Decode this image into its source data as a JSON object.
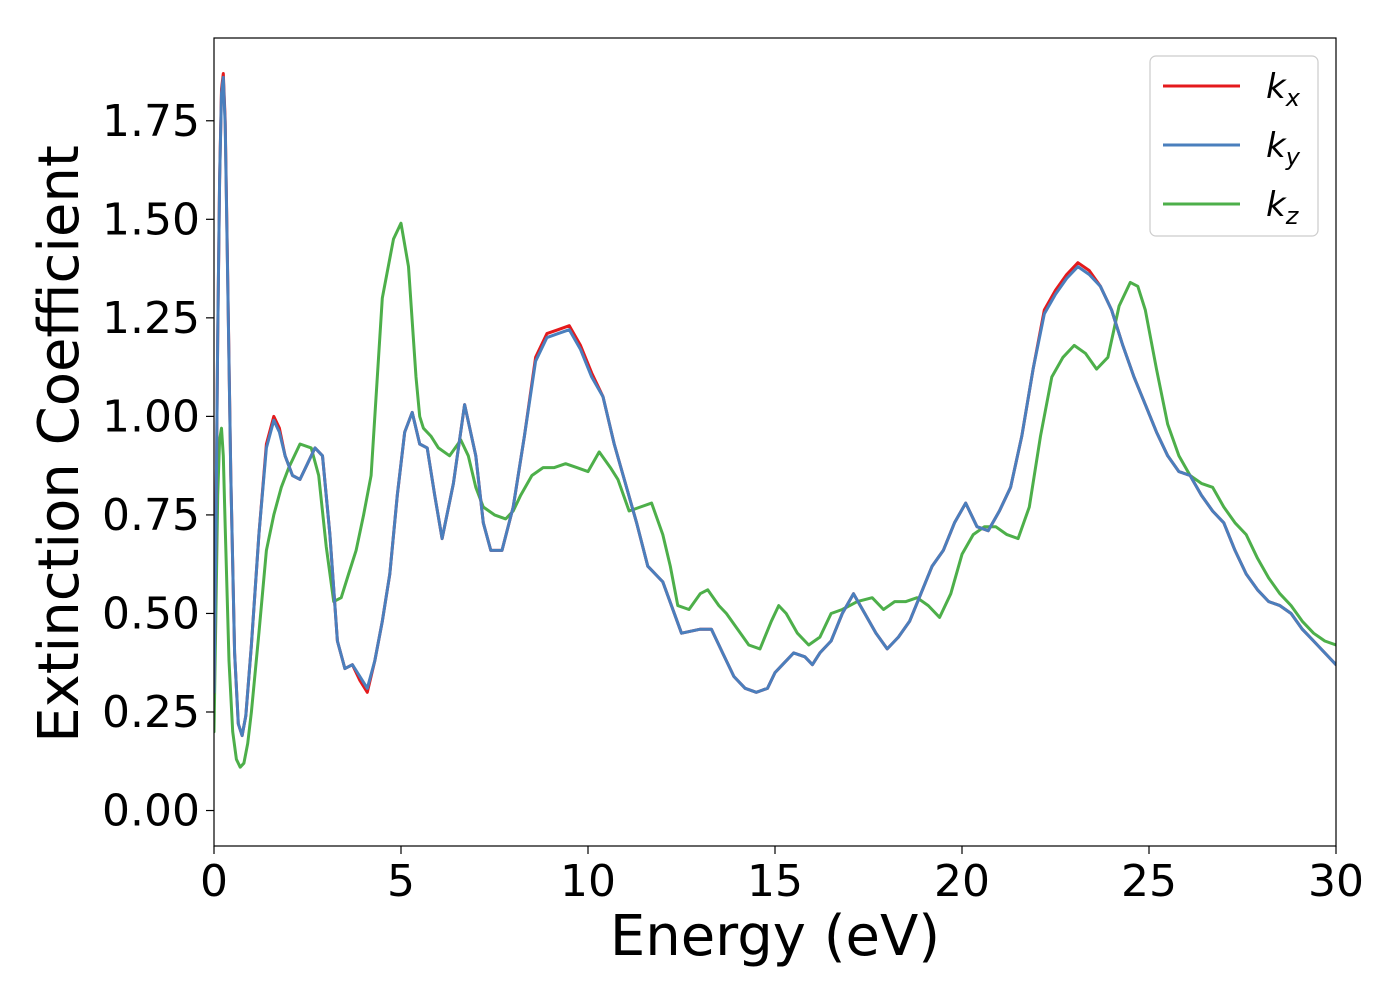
{
  "chart_data": {
    "type": "line",
    "title": "",
    "xlabel": "Energy (eV)",
    "ylabel": "Extinction Coefficient",
    "xlim": [
      0,
      30
    ],
    "ylim": [
      -0.09,
      1.96
    ],
    "xticks": [
      0,
      5,
      10,
      15,
      20,
      25,
      30
    ],
    "xtick_labels": [
      "0",
      "5",
      "10",
      "15",
      "20",
      "25",
      "30"
    ],
    "yticks": [
      0.0,
      0.25,
      0.5,
      0.75,
      1.0,
      1.25,
      1.5,
      1.75
    ],
    "ytick_labels": [
      "0.00",
      "0.25",
      "0.50",
      "0.75",
      "1.00",
      "1.25",
      "1.50",
      "1.75"
    ],
    "grid": false,
    "legend_position": "top-right",
    "series": [
      {
        "name": "k_x",
        "base": "k",
        "sub": "x",
        "color": "#e41a1c",
        "x": [
          0,
          0.05,
          0.1,
          0.15,
          0.2,
          0.25,
          0.3,
          0.35,
          0.45,
          0.55,
          0.65,
          0.75,
          0.85,
          1.0,
          1.2,
          1.4,
          1.6,
          1.75,
          1.9,
          2.1,
          2.3,
          2.5,
          2.7,
          2.9,
          3.1,
          3.3,
          3.5,
          3.7,
          3.9,
          4.1,
          4.3,
          4.5,
          4.7,
          4.9,
          5.1,
          5.3,
          5.5,
          5.7,
          5.9,
          6.1,
          6.4,
          6.7,
          7.0,
          7.2,
          7.4,
          7.7,
          8.0,
          8.3,
          8.6,
          8.9,
          9.2,
          9.5,
          9.8,
          10.1,
          10.4,
          10.7,
          11.0,
          11.3,
          11.6,
          12.0,
          12.5,
          13.0,
          13.3,
          13.6,
          13.9,
          14.2,
          14.5,
          14.8,
          15.0,
          15.2,
          15.5,
          15.8,
          16.0,
          16.2,
          16.5,
          16.8,
          17.1,
          17.4,
          17.7,
          18.0,
          18.3,
          18.6,
          18.9,
          19.2,
          19.5,
          19.8,
          20.1,
          20.4,
          20.7,
          21.0,
          21.3,
          21.6,
          21.9,
          22.2,
          22.5,
          22.8,
          23.1,
          23.4,
          23.7,
          24.0,
          24.3,
          24.6,
          24.9,
          25.2,
          25.5,
          25.8,
          26.1,
          26.4,
          26.7,
          27.0,
          27.3,
          27.6,
          27.9,
          28.2,
          28.5,
          28.8,
          29.1,
          29.4,
          29.7,
          30.0
        ],
        "y": [
          0.3,
          0.7,
          1.2,
          1.6,
          1.83,
          1.87,
          1.75,
          1.45,
          0.85,
          0.4,
          0.22,
          0.19,
          0.24,
          0.42,
          0.7,
          0.93,
          1.0,
          0.97,
          0.9,
          0.85,
          0.84,
          0.88,
          0.92,
          0.9,
          0.7,
          0.43,
          0.36,
          0.37,
          0.33,
          0.3,
          0.38,
          0.48,
          0.6,
          0.8,
          0.96,
          1.01,
          0.93,
          0.92,
          0.8,
          0.69,
          0.83,
          1.03,
          0.9,
          0.73,
          0.66,
          0.66,
          0.77,
          0.95,
          1.15,
          1.21,
          1.22,
          1.23,
          1.18,
          1.11,
          1.05,
          0.93,
          0.83,
          0.73,
          0.62,
          0.58,
          0.45,
          0.46,
          0.46,
          0.4,
          0.34,
          0.31,
          0.3,
          0.31,
          0.35,
          0.37,
          0.4,
          0.39,
          0.37,
          0.4,
          0.43,
          0.5,
          0.55,
          0.5,
          0.45,
          0.41,
          0.44,
          0.48,
          0.55,
          0.62,
          0.66,
          0.73,
          0.78,
          0.72,
          0.71,
          0.76,
          0.82,
          0.95,
          1.12,
          1.27,
          1.32,
          1.36,
          1.39,
          1.37,
          1.33,
          1.27,
          1.18,
          1.1,
          1.03,
          0.96,
          0.9,
          0.86,
          0.85,
          0.8,
          0.76,
          0.73,
          0.66,
          0.6,
          0.56,
          0.53,
          0.52,
          0.5,
          0.46,
          0.43,
          0.4,
          0.37
        ]
      },
      {
        "name": "k_y",
        "base": "k",
        "sub": "y",
        "color": "#4a7fbd",
        "x": [
          0,
          0.05,
          0.1,
          0.15,
          0.2,
          0.25,
          0.3,
          0.35,
          0.45,
          0.55,
          0.65,
          0.75,
          0.85,
          1.0,
          1.2,
          1.4,
          1.6,
          1.75,
          1.9,
          2.1,
          2.3,
          2.5,
          2.7,
          2.9,
          3.1,
          3.3,
          3.5,
          3.7,
          3.9,
          4.1,
          4.3,
          4.5,
          4.7,
          4.9,
          5.1,
          5.3,
          5.5,
          5.7,
          5.9,
          6.1,
          6.4,
          6.7,
          7.0,
          7.2,
          7.4,
          7.7,
          8.0,
          8.3,
          8.6,
          8.9,
          9.2,
          9.5,
          9.8,
          10.1,
          10.4,
          10.7,
          11.0,
          11.3,
          11.6,
          12.0,
          12.5,
          13.0,
          13.3,
          13.6,
          13.9,
          14.2,
          14.5,
          14.8,
          15.0,
          15.2,
          15.5,
          15.8,
          16.0,
          16.2,
          16.5,
          16.8,
          17.1,
          17.4,
          17.7,
          18.0,
          18.3,
          18.6,
          18.9,
          19.2,
          19.5,
          19.8,
          20.1,
          20.4,
          20.7,
          21.0,
          21.3,
          21.6,
          21.9,
          22.2,
          22.5,
          22.8,
          23.1,
          23.4,
          23.7,
          24.0,
          24.3,
          24.6,
          24.9,
          25.2,
          25.5,
          25.8,
          26.1,
          26.4,
          26.7,
          27.0,
          27.3,
          27.6,
          27.9,
          28.2,
          28.5,
          28.8,
          29.1,
          29.4,
          29.7,
          30.0
        ],
        "y": [
          0.3,
          0.7,
          1.2,
          1.6,
          1.82,
          1.86,
          1.74,
          1.44,
          0.85,
          0.4,
          0.22,
          0.19,
          0.24,
          0.42,
          0.7,
          0.92,
          0.99,
          0.96,
          0.9,
          0.85,
          0.84,
          0.88,
          0.92,
          0.9,
          0.7,
          0.43,
          0.36,
          0.37,
          0.34,
          0.31,
          0.38,
          0.48,
          0.6,
          0.8,
          0.96,
          1.01,
          0.93,
          0.92,
          0.8,
          0.69,
          0.83,
          1.03,
          0.9,
          0.73,
          0.66,
          0.66,
          0.77,
          0.95,
          1.14,
          1.2,
          1.21,
          1.22,
          1.17,
          1.1,
          1.05,
          0.93,
          0.83,
          0.73,
          0.62,
          0.58,
          0.45,
          0.46,
          0.46,
          0.4,
          0.34,
          0.31,
          0.3,
          0.31,
          0.35,
          0.37,
          0.4,
          0.39,
          0.37,
          0.4,
          0.43,
          0.5,
          0.55,
          0.5,
          0.45,
          0.41,
          0.44,
          0.48,
          0.55,
          0.62,
          0.66,
          0.73,
          0.78,
          0.72,
          0.71,
          0.76,
          0.82,
          0.95,
          1.12,
          1.26,
          1.31,
          1.35,
          1.38,
          1.36,
          1.33,
          1.27,
          1.18,
          1.1,
          1.03,
          0.96,
          0.9,
          0.86,
          0.85,
          0.8,
          0.76,
          0.73,
          0.66,
          0.6,
          0.56,
          0.53,
          0.52,
          0.5,
          0.46,
          0.43,
          0.4,
          0.37
        ]
      },
      {
        "name": "k_z",
        "base": "k",
        "sub": "z",
        "color": "#4daf4a",
        "x": [
          0,
          0.05,
          0.1,
          0.15,
          0.2,
          0.25,
          0.3,
          0.4,
          0.5,
          0.6,
          0.7,
          0.8,
          0.9,
          1.0,
          1.2,
          1.4,
          1.6,
          1.8,
          2.0,
          2.3,
          2.6,
          2.8,
          3.0,
          3.2,
          3.4,
          3.6,
          3.8,
          4.0,
          4.2,
          4.5,
          4.8,
          5.0,
          5.2,
          5.4,
          5.5,
          5.6,
          5.8,
          6.0,
          6.3,
          6.6,
          6.8,
          7.0,
          7.2,
          7.5,
          7.8,
          8.0,
          8.2,
          8.5,
          8.8,
          9.1,
          9.4,
          9.7,
          10.0,
          10.3,
          10.6,
          10.8,
          11.1,
          11.4,
          11.7,
          12.0,
          12.2,
          12.4,
          12.7,
          13.0,
          13.2,
          13.5,
          13.7,
          14.0,
          14.3,
          14.6,
          14.9,
          15.1,
          15.3,
          15.6,
          15.9,
          16.2,
          16.5,
          16.8,
          17.2,
          17.6,
          17.9,
          18.2,
          18.5,
          18.8,
          19.1,
          19.4,
          19.7,
          20.0,
          20.3,
          20.6,
          20.9,
          21.2,
          21.5,
          21.8,
          22.1,
          22.4,
          22.7,
          23.0,
          23.3,
          23.6,
          23.9,
          24.2,
          24.5,
          24.7,
          24.9,
          25.2,
          25.5,
          25.8,
          26.1,
          26.4,
          26.7,
          27.0,
          27.3,
          27.6,
          27.9,
          28.2,
          28.5,
          28.8,
          29.1,
          29.4,
          29.7,
          30.0
        ],
        "y": [
          0.2,
          0.5,
          0.8,
          0.94,
          0.97,
          0.9,
          0.72,
          0.38,
          0.2,
          0.13,
          0.11,
          0.12,
          0.17,
          0.25,
          0.45,
          0.66,
          0.75,
          0.82,
          0.87,
          0.93,
          0.92,
          0.85,
          0.67,
          0.53,
          0.54,
          0.6,
          0.66,
          0.75,
          0.85,
          1.3,
          1.45,
          1.49,
          1.38,
          1.1,
          1.0,
          0.97,
          0.95,
          0.92,
          0.9,
          0.94,
          0.9,
          0.82,
          0.77,
          0.75,
          0.74,
          0.76,
          0.8,
          0.85,
          0.87,
          0.87,
          0.88,
          0.87,
          0.86,
          0.91,
          0.87,
          0.84,
          0.76,
          0.77,
          0.78,
          0.7,
          0.62,
          0.52,
          0.51,
          0.55,
          0.56,
          0.52,
          0.5,
          0.46,
          0.42,
          0.41,
          0.48,
          0.52,
          0.5,
          0.45,
          0.42,
          0.44,
          0.5,
          0.51,
          0.53,
          0.54,
          0.51,
          0.53,
          0.53,
          0.54,
          0.52,
          0.49,
          0.55,
          0.65,
          0.7,
          0.72,
          0.72,
          0.7,
          0.69,
          0.77,
          0.95,
          1.1,
          1.15,
          1.18,
          1.16,
          1.12,
          1.15,
          1.28,
          1.34,
          1.33,
          1.27,
          1.12,
          0.98,
          0.9,
          0.85,
          0.83,
          0.82,
          0.77,
          0.73,
          0.7,
          0.64,
          0.59,
          0.55,
          0.52,
          0.48,
          0.45,
          0.43,
          0.42
        ]
      }
    ]
  }
}
